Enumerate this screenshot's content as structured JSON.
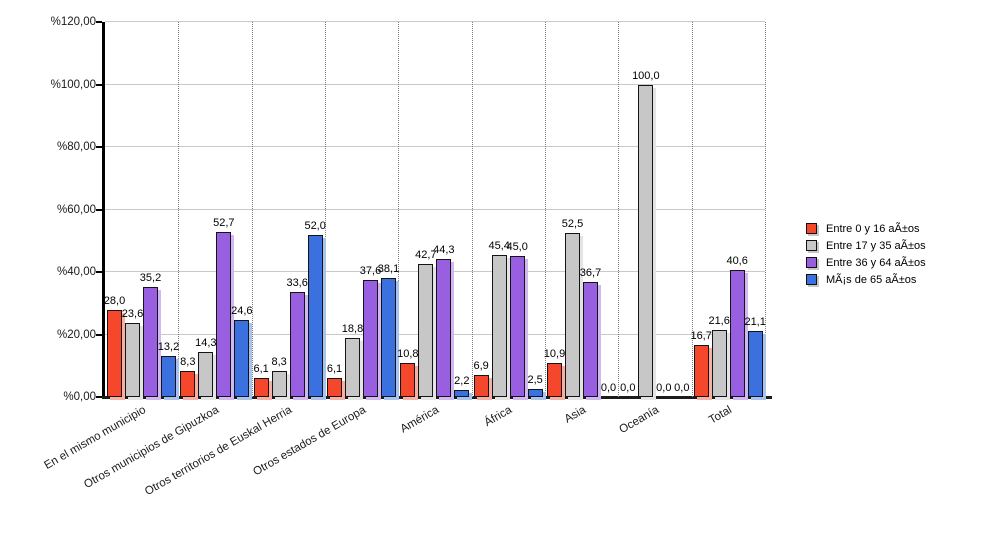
{
  "chart_data": {
    "type": "bar",
    "title": "",
    "categories": [
      "En el mismo municipio",
      "Otros municipios de Gipuzkoa",
      "Otros territorios de Euskal Herria",
      "Otros estados de Europa",
      "América",
      "África",
      "Asia",
      "Oceanía",
      "Total"
    ],
    "series": [
      {
        "name": "Entre 0 y 16 aÃ±os",
        "color": "#f4472b",
        "shadow_color": "#f9b0a4",
        "values": [
          28.0,
          8.3,
          6.1,
          6.1,
          10.8,
          6.9,
          10.9,
          0.0,
          16.7
        ]
      },
      {
        "name": "Entre 17 y 35 aÃ±os",
        "color": "#c7c7c7",
        "shadow_color": "#e4e4e4",
        "values": [
          23.6,
          14.3,
          8.3,
          18.8,
          42.7,
          45.4,
          52.5,
          100.0,
          21.6
        ]
      },
      {
        "name": "Entre 36 y 64 aÃ±os",
        "color": "#985fe0",
        "shadow_color": "#d2b8f2",
        "values": [
          35.2,
          52.7,
          33.6,
          37.6,
          44.3,
          45.0,
          36.7,
          0.0,
          40.6
        ]
      },
      {
        "name": "MÃ¡s de 65 aÃ±os",
        "color": "#3a71de",
        "shadow_color": "#a9c3f0",
        "values": [
          13.2,
          24.6,
          52.0,
          38.1,
          2.2,
          2.5,
          0.0,
          0.0,
          21.1
        ]
      }
    ],
    "y_ticks": [
      0,
      20,
      40,
      60,
      80,
      100,
      120
    ],
    "y_tick_labels": [
      "%0,00",
      "%20,00",
      "%40,00",
      "%60,00",
      "%80,00",
      "%100,00",
      "%120,00"
    ],
    "ylim": [
      0,
      120
    ],
    "xlabel": "",
    "ylabel": "",
    "grid": true,
    "legend_position": "right",
    "decimal_separator": ","
  }
}
